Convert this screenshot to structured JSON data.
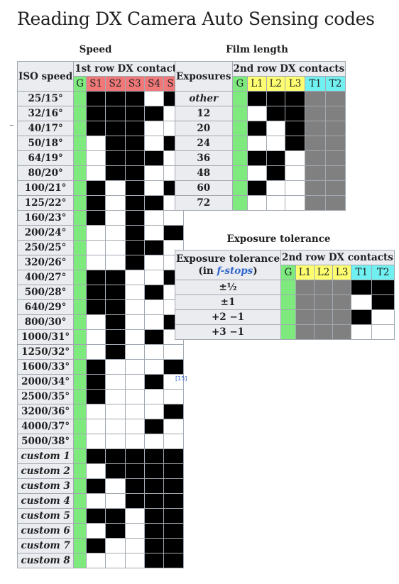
{
  "title": "Reading DX Camera Auto Sensing codes",
  "speed": {
    "caption": "Speed",
    "header_iso": "ISO speed",
    "header_row": "1st row DX contacts",
    "contacts": [
      "G",
      "S1",
      "S2",
      "S3",
      "S4",
      "S5"
    ],
    "rows": [
      {
        "label": "25/15°",
        "italic": false,
        "bits": [
          1,
          1,
          1,
          1,
          0,
          1
        ]
      },
      {
        "label": "32/16°",
        "italic": false,
        "bits": [
          1,
          1,
          1,
          1,
          1,
          0
        ]
      },
      {
        "label": "40/17°",
        "italic": false,
        "bits": [
          1,
          1,
          1,
          1,
          0,
          0
        ]
      },
      {
        "label": "50/18°",
        "italic": false,
        "bits": [
          1,
          0,
          1,
          1,
          0,
          1
        ]
      },
      {
        "label": "64/19°",
        "italic": false,
        "bits": [
          1,
          0,
          1,
          1,
          1,
          0
        ]
      },
      {
        "label": "80/20°",
        "italic": false,
        "bits": [
          1,
          0,
          1,
          1,
          0,
          0
        ]
      },
      {
        "label": "100/21°",
        "italic": false,
        "bits": [
          1,
          1,
          0,
          1,
          0,
          1
        ]
      },
      {
        "label": "125/22°",
        "italic": false,
        "bits": [
          1,
          1,
          0,
          1,
          1,
          0
        ]
      },
      {
        "label": "160/23°",
        "italic": false,
        "bits": [
          1,
          1,
          0,
          1,
          0,
          0
        ]
      },
      {
        "label": "200/24°",
        "italic": false,
        "bits": [
          1,
          0,
          0,
          1,
          0,
          1
        ]
      },
      {
        "label": "250/25°",
        "italic": false,
        "bits": [
          1,
          0,
          0,
          1,
          1,
          0
        ]
      },
      {
        "label": "320/26°",
        "italic": false,
        "bits": [
          1,
          0,
          0,
          1,
          0,
          0
        ]
      },
      {
        "label": "400/27°",
        "italic": false,
        "bits": [
          1,
          1,
          1,
          0,
          0,
          1
        ]
      },
      {
        "label": "500/28°",
        "italic": false,
        "bits": [
          1,
          1,
          1,
          0,
          1,
          0
        ]
      },
      {
        "label": "640/29°",
        "italic": false,
        "bits": [
          1,
          1,
          1,
          0,
          0,
          0
        ]
      },
      {
        "label": "800/30°",
        "italic": false,
        "bits": [
          1,
          0,
          1,
          0,
          0,
          1
        ]
      },
      {
        "label": "1000/31°",
        "italic": false,
        "bits": [
          1,
          0,
          1,
          0,
          1,
          0
        ]
      },
      {
        "label": "1250/32°",
        "italic": false,
        "bits": [
          1,
          0,
          1,
          0,
          0,
          0
        ]
      },
      {
        "label": "1600/33°",
        "italic": false,
        "bits": [
          1,
          1,
          0,
          0,
          0,
          1
        ]
      },
      {
        "label": "2000/34°",
        "italic": false,
        "bits": [
          1,
          1,
          0,
          0,
          1,
          0
        ]
      },
      {
        "label": "2500/35°",
        "italic": false,
        "bits": [
          1,
          1,
          0,
          0,
          0,
          0
        ]
      },
      {
        "label": "3200/36°",
        "italic": false,
        "bits": [
          1,
          0,
          0,
          0,
          0,
          1
        ]
      },
      {
        "label": "4000/37°",
        "italic": false,
        "bits": [
          1,
          0,
          0,
          0,
          1,
          0
        ]
      },
      {
        "label": "5000/38°",
        "italic": false,
        "bits": [
          1,
          0,
          0,
          0,
          0,
          0
        ]
      },
      {
        "label": "custom 1",
        "italic": true,
        "bits": [
          1,
          1,
          1,
          1,
          1,
          1
        ]
      },
      {
        "label": "custom 2",
        "italic": true,
        "bits": [
          1,
          0,
          1,
          1,
          1,
          1
        ]
      },
      {
        "label": "custom 3",
        "italic": true,
        "bits": [
          1,
          1,
          0,
          1,
          1,
          1
        ]
      },
      {
        "label": "custom 4",
        "italic": true,
        "bits": [
          1,
          0,
          0,
          1,
          1,
          1
        ]
      },
      {
        "label": "custom 5",
        "italic": true,
        "bits": [
          1,
          1,
          1,
          0,
          1,
          1
        ]
      },
      {
        "label": "custom 6",
        "italic": true,
        "bits": [
          1,
          0,
          1,
          0,
          1,
          1
        ]
      },
      {
        "label": "custom 7",
        "italic": true,
        "bits": [
          1,
          1,
          0,
          0,
          1,
          1
        ]
      },
      {
        "label": "custom 8",
        "italic": true,
        "bits": [
          1,
          0,
          0,
          0,
          1,
          1
        ]
      }
    ]
  },
  "film": {
    "caption": "Film length",
    "header_exp": "Exposures",
    "header_row": "2nd row DX contacts",
    "contacts": [
      "G",
      "L1",
      "L2",
      "L3",
      "T1",
      "T2"
    ],
    "rows": [
      {
        "label": "other",
        "italic": true,
        "bits": [
          1,
          1,
          1,
          1,
          2,
          2
        ]
      },
      {
        "label": "12",
        "italic": false,
        "bits": [
          1,
          0,
          1,
          1,
          2,
          2
        ]
      },
      {
        "label": "20",
        "italic": false,
        "bits": [
          1,
          1,
          0,
          1,
          2,
          2
        ]
      },
      {
        "label": "24",
        "italic": false,
        "bits": [
          1,
          0,
          0,
          1,
          2,
          2
        ]
      },
      {
        "label": "36",
        "italic": false,
        "bits": [
          1,
          1,
          1,
          0,
          2,
          2
        ]
      },
      {
        "label": "48",
        "italic": false,
        "bits": [
          1,
          0,
          1,
          0,
          2,
          2
        ]
      },
      {
        "label": "60",
        "italic": false,
        "bits": [
          1,
          1,
          0,
          0,
          2,
          2
        ]
      },
      {
        "label": "72",
        "italic": false,
        "bits": [
          1,
          0,
          0,
          0,
          2,
          2
        ]
      }
    ]
  },
  "tolerance": {
    "caption": "Exposure tolerance",
    "header_tol": "Exposure tolerance",
    "header_tol_sub_pre": "(in ",
    "header_tol_link": "f-stops",
    "header_tol_sub_post": ")",
    "header_row": "2nd row DX contacts",
    "contacts": [
      "G",
      "L1",
      "L2",
      "L3",
      "T1",
      "T2"
    ],
    "rows": [
      {
        "label": "±½",
        "italic": false,
        "bits": [
          1,
          2,
          2,
          2,
          1,
          1
        ]
      },
      {
        "label": "±1",
        "italic": false,
        "bits": [
          1,
          2,
          2,
          2,
          0,
          1
        ]
      },
      {
        "label": "+2 −1",
        "italic": false,
        "bits": [
          1,
          2,
          2,
          2,
          1,
          0
        ]
      },
      {
        "label": "+3 −1",
        "italic": false,
        "bits": [
          1,
          2,
          2,
          2,
          0,
          0
        ]
      }
    ]
  },
  "reference": "[15]",
  "colors": {
    "ground": "#7eea7e",
    "s_contacts": "#f07878",
    "l_contacts": "#fefe70",
    "t_contacts": "#70f0f0",
    "on": "#000000",
    "off": "#ffffff",
    "unused": "#808080"
  }
}
